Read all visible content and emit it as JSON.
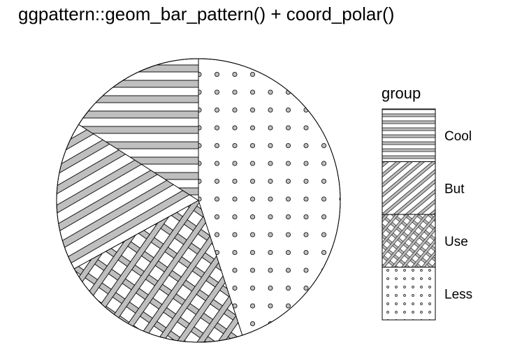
{
  "chart_data": {
    "type": "pie",
    "title": "ggpattern::geom_bar_pattern() + coord_polar()",
    "legend": {
      "title": "group",
      "placement": "right"
    },
    "slices": [
      {
        "label": "Less",
        "value": 0.45,
        "pattern": "dots"
      },
      {
        "label": "Use",
        "value": 0.22,
        "pattern": "crosshatch"
      },
      {
        "label": "But",
        "value": 0.17,
        "pattern": "diagonal-stripes"
      },
      {
        "label": "Cool",
        "value": 0.16,
        "pattern": "horizontal-stripes"
      }
    ],
    "colors": {
      "outline": "#000000",
      "pattern_fill": "#bfbfbf",
      "background": "#ffffff"
    }
  }
}
